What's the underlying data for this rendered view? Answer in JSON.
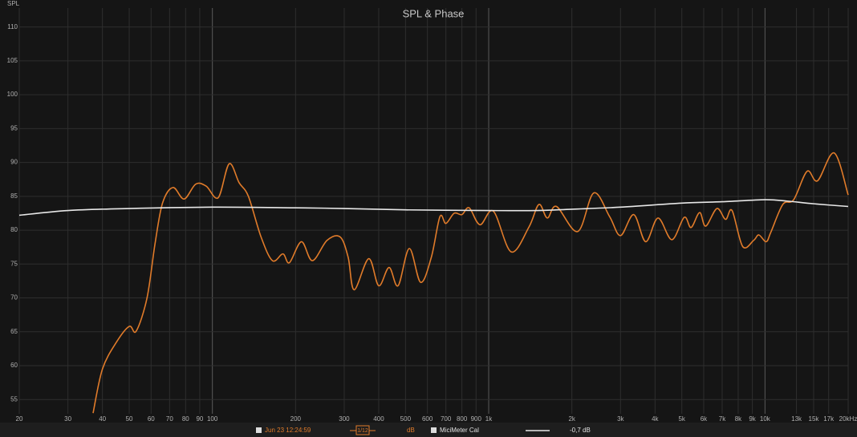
{
  "chart_data": {
    "type": "line",
    "title": "SPL & Phase",
    "ylabel": "SPL",
    "xscale": "log",
    "grid": true,
    "xlim": [
      20,
      20000
    ],
    "ylim": [
      52.9,
      112.8
    ],
    "xticks": [
      20,
      30,
      40,
      50,
      60,
      70,
      80,
      90,
      100,
      200,
      300,
      400,
      500,
      600,
      700,
      800,
      900,
      {
        "value": 1000,
        "label": "1k"
      },
      {
        "value": 2000,
        "label": "2k"
      },
      {
        "value": 3000,
        "label": "3k"
      },
      {
        "value": 4000,
        "label": "4k"
      },
      {
        "value": 5000,
        "label": "5k"
      },
      {
        "value": 6000,
        "label": "6k"
      },
      {
        "value": 7000,
        "label": "7k"
      },
      {
        "value": 8000,
        "label": "8k"
      },
      {
        "value": 9000,
        "label": "9k"
      },
      {
        "value": 10000,
        "label": "10k"
      },
      {
        "value": 13000,
        "label": "13k"
      },
      {
        "value": 15000,
        "label": "15k"
      },
      {
        "value": 17000,
        "label": "17k"
      },
      {
        "value": 20000,
        "label": "20kHz"
      }
    ],
    "yticks": [
      55,
      60,
      65,
      70,
      75,
      80,
      85,
      90,
      95,
      100,
      105,
      110
    ],
    "series": [
      {
        "name": "Jun 23 12:24:59",
        "smoothing": "1/12",
        "unit": "dB",
        "color": "#e07b2a",
        "x": [
          37,
          40,
          45,
          50,
          53,
          58,
          62,
          66,
          72,
          79,
          87,
          95,
          105,
          115,
          125,
          135,
          150,
          165,
          180,
          190,
          210,
          230,
          260,
          290,
          310,
          326,
          368,
          400,
          436,
          470,
          516,
          567,
          620,
          666,
          700,
          750,
          800,
          850,
          930,
          1040,
          1206,
          1400,
          1520,
          1630,
          1760,
          2100,
          2400,
          2740,
          3000,
          3350,
          3700,
          4100,
          4600,
          5100,
          5400,
          5800,
          6100,
          6700,
          7200,
          7600,
          8300,
          9100,
          9500,
          10100,
          10500,
          11600,
          12700,
          14200,
          15500,
          17800,
          20000
        ],
        "values": [
          53,
          59.5,
          63.5,
          65.8,
          65.1,
          70,
          78,
          84,
          86.3,
          84.6,
          86.8,
          86.5,
          84.8,
          89.8,
          87,
          85,
          79,
          75.5,
          76.5,
          75.2,
          78.3,
          75.5,
          78.5,
          79,
          76,
          71.2,
          75.8,
          71.8,
          74.5,
          71.8,
          77.3,
          72.3,
          76,
          82,
          81,
          82.5,
          82.3,
          83.3,
          80.8,
          82.8,
          76.8,
          80.5,
          83.8,
          81.8,
          83.5,
          79.8,
          85.5,
          82,
          79.2,
          82.3,
          78.3,
          81.8,
          78.6,
          81.9,
          80.4,
          82.6,
          80.6,
          83.2,
          81.6,
          82.9,
          77.6,
          78.5,
          79.3,
          78.3,
          79.7,
          83.8,
          84.5,
          88.7,
          87.3,
          91.4,
          85.2
        ]
      },
      {
        "name": "MiciMeter Cal",
        "offset": "-0,7 dB",
        "color": "#e8e8e8",
        "x": [
          20,
          30,
          50,
          100,
          200,
          300,
          500,
          1000,
          1500,
          2000,
          3000,
          5000,
          7000,
          10000,
          12000,
          15000,
          20000
        ],
        "values": [
          82.2,
          82.9,
          83.2,
          83.4,
          83.3,
          83.2,
          83,
          82.9,
          82.9,
          83.1,
          83.4,
          84,
          84.2,
          84.5,
          84.3,
          83.9,
          83.5
        ]
      }
    ]
  }
}
